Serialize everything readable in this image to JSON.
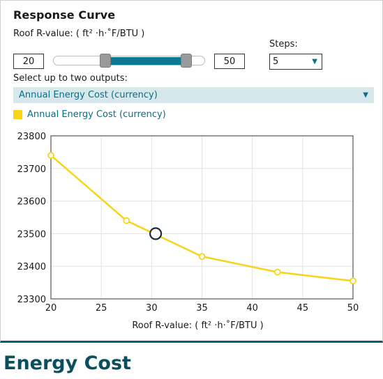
{
  "panel": {
    "title": "Response Curve",
    "param_label": "Roof R-value: ( ft² ·h·˚F/BTU )",
    "range_min": "20",
    "range_max": "50",
    "slider_low_fraction": 0.0,
    "slider_high_fraction": 1.0,
    "steps_label": "Steps:",
    "steps_value": "5",
    "outputs_label": "Select up to two outputs:",
    "output_selected": "Annual Energy Cost (currency)",
    "legend_label": "Annual Energy Cost (currency)"
  },
  "colors": {
    "accent": "#0b6e86",
    "series": "#f7d417",
    "marker_highlight": "#1a2b3c",
    "footer": "#0b4f5c"
  },
  "chart_data": {
    "type": "line",
    "xlabel": "Roof R-value: ( ft² ·h·˚F/BTU )",
    "ylabel": "",
    "xlim": [
      20,
      50
    ],
    "ylim": [
      23300,
      23800
    ],
    "x_ticks": [
      20,
      25,
      30,
      35,
      40,
      45,
      50
    ],
    "y_ticks": [
      23300,
      23400,
      23500,
      23600,
      23700,
      23800
    ],
    "grid": true,
    "series": [
      {
        "name": "Annual Energy Cost (currency)",
        "x": [
          20,
          27.5,
          35,
          42.5,
          50
        ],
        "y": [
          23740,
          23540,
          23430,
          23382,
          23355
        ]
      }
    ],
    "current_point": {
      "x": 30.4,
      "y": 23500
    }
  },
  "footer": {
    "title": "Energy Cost"
  }
}
